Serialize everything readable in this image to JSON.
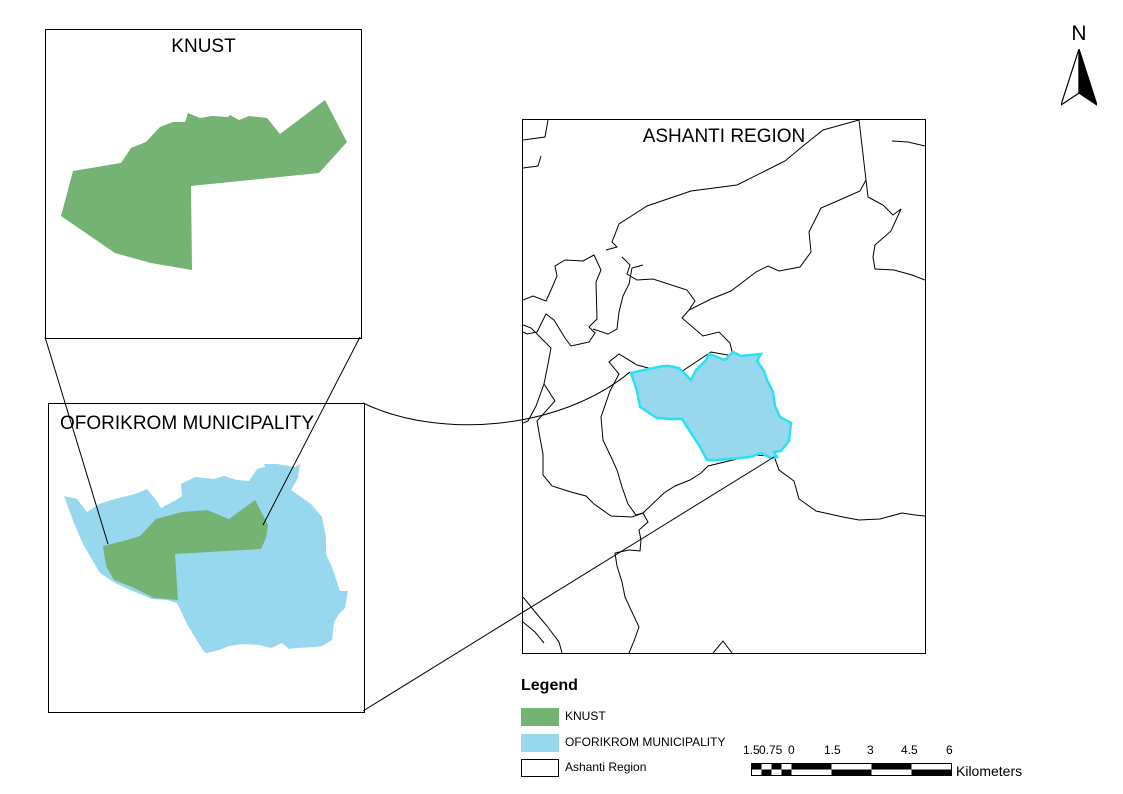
{
  "map": {
    "frames": {
      "knust": {
        "title": "KNUST"
      },
      "oforikrom": {
        "title": "OFORIKROM MUNICIPALITY"
      },
      "region": {
        "title": "ASHANTI REGION"
      }
    },
    "north_arrow": {
      "label": "N",
      "icon": "north-arrow-icon"
    },
    "legend": {
      "title": "Legend",
      "items": [
        {
          "label": "KNUST",
          "color": "#75b374"
        },
        {
          "label": "OFORIKROM MUNICIPALITY",
          "color": "#97d8ef"
        },
        {
          "label": "Ashanti Region",
          "color": "#ffffff"
        }
      ]
    },
    "scale_bar": {
      "ticks": [
        "1.5",
        "0.75",
        "0",
        "1.5",
        "3",
        "4.5",
        "6"
      ],
      "unit": "Kilometers"
    },
    "colors": {
      "knust_fill": "#75b374",
      "oforikrom_fill": "#97d8ef",
      "oforikrom_highlight": "#2de0f0",
      "boundary": "#000000"
    }
  }
}
